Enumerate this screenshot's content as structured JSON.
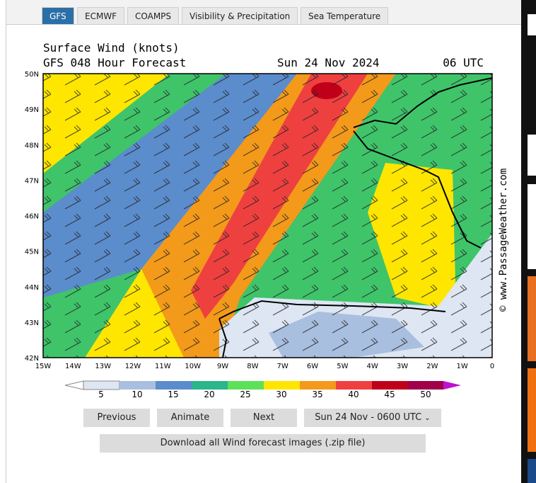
{
  "tabs": [
    {
      "label": "GFS",
      "active": true
    },
    {
      "label": "ECMWF",
      "active": false
    },
    {
      "label": "COAMPS",
      "active": false
    },
    {
      "label": "Visibility & Precipitation",
      "active": false
    },
    {
      "label": "Sea Temperature",
      "active": false
    }
  ],
  "map": {
    "title": "Surface Wind (knots)",
    "subtitle": "GFS 048 Hour Forecast",
    "date": "Sun 24 Nov 2024",
    "time": "06 UTC",
    "lat_labels": [
      "50N",
      "49N",
      "48N",
      "47N",
      "46N",
      "45N",
      "44N",
      "43N",
      "42N"
    ],
    "lon_labels": [
      "15W",
      "14W",
      "13W",
      "12W",
      "11W",
      "10W",
      "9W",
      "8W",
      "7W",
      "6W",
      "5W",
      "4W",
      "3W",
      "2W",
      "1W",
      "0"
    ],
    "watermark": "© www.PassageWeather.com"
  },
  "legend": {
    "labels": [
      5,
      10,
      15,
      20,
      25,
      30,
      35,
      40,
      45,
      50
    ]
  },
  "controls": {
    "previous": "Previous",
    "animate": "Animate",
    "next": "Next",
    "time_select": "Sun 24 Nov - 0600 UTC",
    "download": "Download all Wind forecast images (.zip file)"
  }
}
